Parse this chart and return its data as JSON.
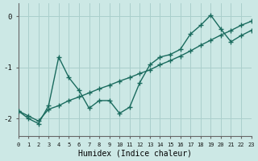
{
  "xlabel": "Humidex (Indice chaleur)",
  "bg_color": "#cce8e5",
  "grid_color": "#aacfcc",
  "line_color": "#1a6b5e",
  "x": [
    0,
    1,
    2,
    3,
    4,
    5,
    6,
    7,
    8,
    9,
    10,
    11,
    12,
    13,
    14,
    15,
    16,
    17,
    18,
    19,
    20,
    21,
    22,
    23
  ],
  "y_jagged": [
    -1.85,
    -2.0,
    -2.1,
    -1.75,
    -0.8,
    -1.2,
    -1.45,
    -1.8,
    -1.65,
    -1.65,
    -1.9,
    -1.78,
    -1.3,
    -0.95,
    -0.8,
    -0.75,
    -0.65,
    -0.35,
    -0.18,
    0.02,
    -0.25,
    -0.5,
    -0.38,
    -0.28
  ],
  "y_trend": [
    -1.85,
    -1.95,
    -2.05,
    -1.82,
    -1.75,
    -1.65,
    -1.58,
    -1.5,
    -1.42,
    -1.35,
    -1.27,
    -1.2,
    -1.12,
    -1.05,
    -0.95,
    -0.87,
    -0.78,
    -0.68,
    -0.57,
    -0.47,
    -0.37,
    -0.28,
    -0.18,
    -0.1
  ],
  "ylim": [
    -2.35,
    0.25
  ],
  "xlim": [
    0,
    23
  ],
  "yticks": [
    -2,
    -1,
    0
  ],
  "xticks": [
    0,
    1,
    2,
    3,
    4,
    5,
    6,
    7,
    8,
    9,
    10,
    11,
    12,
    13,
    14,
    15,
    16,
    17,
    18,
    19,
    20,
    21,
    22,
    23
  ],
  "marker": "+",
  "markersize": 4,
  "linewidth": 1.0
}
